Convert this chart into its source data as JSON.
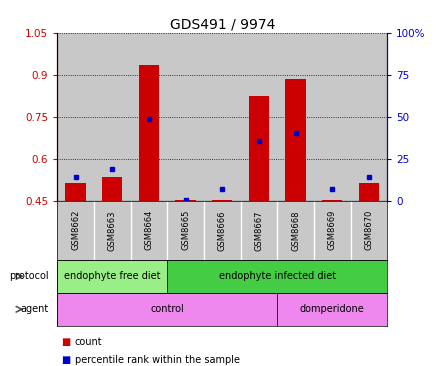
{
  "title": "GDS491 / 9974",
  "samples": [
    "GSM8662",
    "GSM8663",
    "GSM8664",
    "GSM8665",
    "GSM8666",
    "GSM8667",
    "GSM8668",
    "GSM8669",
    "GSM8670"
  ],
  "red_values": [
    0.515,
    0.535,
    0.935,
    0.455,
    0.455,
    0.825,
    0.885,
    0.455,
    0.515
  ],
  "blue_values": [
    0.535,
    0.565,
    0.745,
    0.455,
    0.495,
    0.665,
    0.695,
    0.495,
    0.535
  ],
  "red_base": 0.45,
  "ylim_left": [
    0.45,
    1.05
  ],
  "yticks_left": [
    0.45,
    0.6,
    0.75,
    0.9,
    1.05
  ],
  "yticks_right": [
    0,
    25,
    50,
    75,
    100
  ],
  "bar_color": "#cc0000",
  "dot_color": "#0000cc",
  "bg_color": "#c8c8c8",
  "protocol_groups": [
    {
      "label": "endophyte free diet",
      "start": 0,
      "end": 3,
      "color": "#99ee88"
    },
    {
      "label": "endophyte infected diet",
      "start": 3,
      "end": 9,
      "color": "#44cc44"
    }
  ],
  "agent_groups": [
    {
      "label": "control",
      "start": 0,
      "end": 6
    },
    {
      "label": "domperidone",
      "start": 6,
      "end": 9
    }
  ],
  "agent_color": "#ee88ee",
  "protocol_label": "protocol",
  "agent_label": "agent",
  "legend_red": "count",
  "legend_blue": "percentile rank within the sample",
  "title_fontsize": 10,
  "tick_fontsize": 7.5,
  "label_fontsize": 7,
  "row_fontsize": 7
}
